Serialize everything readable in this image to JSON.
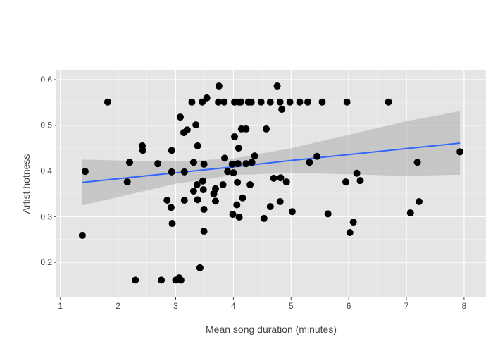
{
  "chart_data": {
    "type": "scatter",
    "title": "",
    "xlabel": "Mean song duration (minutes)",
    "ylabel": "Artist hotness",
    "xlim": [
      0.93,
      8.38
    ],
    "ylim": [
      0.123,
      0.62
    ],
    "xticks": [
      1,
      2,
      3,
      4,
      5,
      6,
      7,
      8
    ],
    "yticks": [
      0.2,
      0.3,
      0.4,
      0.5,
      0.6
    ],
    "grid": true,
    "colors": {
      "points": "#000000",
      "trend": "#3366ff",
      "band": "#999999",
      "panel": "#e5e5e5"
    },
    "points": [
      [
        1.38,
        0.259
      ],
      [
        1.43,
        0.399
      ],
      [
        1.82,
        0.551
      ],
      [
        2.16,
        0.376
      ],
      [
        2.2,
        0.419
      ],
      [
        2.3,
        0.161
      ],
      [
        2.42,
        0.455
      ],
      [
        2.43,
        0.445
      ],
      [
        2.69,
        0.416
      ],
      [
        2.75,
        0.161
      ],
      [
        2.85,
        0.336
      ],
      [
        2.92,
        0.32
      ],
      [
        2.93,
        0.445
      ],
      [
        2.93,
        0.398
      ],
      [
        2.94,
        0.285
      ],
      [
        3.0,
        0.161
      ],
      [
        3.06,
        0.166
      ],
      [
        3.09,
        0.161
      ],
      [
        3.08,
        0.518
      ],
      [
        3.14,
        0.484
      ],
      [
        3.15,
        0.398
      ],
      [
        3.15,
        0.336
      ],
      [
        3.2,
        0.49
      ],
      [
        3.28,
        0.551
      ],
      [
        3.31,
        0.419
      ],
      [
        3.31,
        0.356
      ],
      [
        3.35,
        0.501
      ],
      [
        3.37,
        0.37
      ],
      [
        3.38,
        0.455
      ],
      [
        3.38,
        0.337
      ],
      [
        3.42,
        0.188
      ],
      [
        3.46,
        0.551
      ],
      [
        3.47,
        0.378
      ],
      [
        3.48,
        0.359
      ],
      [
        3.49,
        0.415
      ],
      [
        3.49,
        0.268
      ],
      [
        3.49,
        0.316
      ],
      [
        3.54,
        0.56
      ],
      [
        3.66,
        0.35
      ],
      [
        3.69,
        0.361
      ],
      [
        3.69,
        0.334
      ],
      [
        3.75,
        0.586
      ],
      [
        3.74,
        0.551
      ],
      [
        3.84,
        0.551
      ],
      [
        3.82,
        0.37
      ],
      [
        3.85,
        0.428
      ],
      [
        3.9,
        0.399
      ],
      [
        3.98,
        0.415
      ],
      [
        3.99,
        0.305
      ],
      [
        4.0,
        0.396
      ],
      [
        4.02,
        0.475
      ],
      [
        4.02,
        0.551
      ],
      [
        4.06,
        0.326
      ],
      [
        4.07,
        0.375
      ],
      [
        4.08,
        0.416
      ],
      [
        4.09,
        0.45
      ],
      [
        4.1,
        0.551
      ],
      [
        4.1,
        0.299
      ],
      [
        4.13,
        0.551
      ],
      [
        4.14,
        0.492
      ],
      [
        4.16,
        0.341
      ],
      [
        4.22,
        0.492
      ],
      [
        4.22,
        0.416
      ],
      [
        4.26,
        0.551
      ],
      [
        4.29,
        0.37
      ],
      [
        4.31,
        0.551
      ],
      [
        4.32,
        0.419
      ],
      [
        4.37,
        0.433
      ],
      [
        4.48,
        0.551
      ],
      [
        4.53,
        0.296
      ],
      [
        4.57,
        0.492
      ],
      [
        4.64,
        0.551
      ],
      [
        4.64,
        0.322
      ],
      [
        4.7,
        0.384
      ],
      [
        4.76,
        0.586
      ],
      [
        4.81,
        0.333
      ],
      [
        4.81,
        0.551
      ],
      [
        4.82,
        0.385
      ],
      [
        4.84,
        0.535
      ],
      [
        4.92,
        0.376
      ],
      [
        4.98,
        0.551
      ],
      [
        5.02,
        0.311
      ],
      [
        5.15,
        0.551
      ],
      [
        5.29,
        0.551
      ],
      [
        5.32,
        0.419
      ],
      [
        5.45,
        0.432
      ],
      [
        5.54,
        0.551
      ],
      [
        5.64,
        0.306
      ],
      [
        5.95,
        0.376
      ],
      [
        5.97,
        0.551
      ],
      [
        6.02,
        0.265
      ],
      [
        6.08,
        0.288
      ],
      [
        6.14,
        0.395
      ],
      [
        6.2,
        0.379
      ],
      [
        6.69,
        0.551
      ],
      [
        7.07,
        0.308
      ],
      [
        7.19,
        0.419
      ],
      [
        7.22,
        0.333
      ],
      [
        7.93,
        0.442
      ]
    ],
    "trend": {
      "x": [
        1.38,
        2,
        3,
        4,
        5,
        6,
        7,
        7.93
      ],
      "fit": [
        0.375,
        0.383,
        0.396,
        0.409,
        0.423,
        0.436,
        0.449,
        0.461
      ],
      "lower": [
        0.325,
        0.343,
        0.372,
        0.391,
        0.396,
        0.393,
        0.389,
        0.392
      ],
      "upper": [
        0.425,
        0.423,
        0.421,
        0.427,
        0.45,
        0.479,
        0.509,
        0.531
      ]
    }
  }
}
